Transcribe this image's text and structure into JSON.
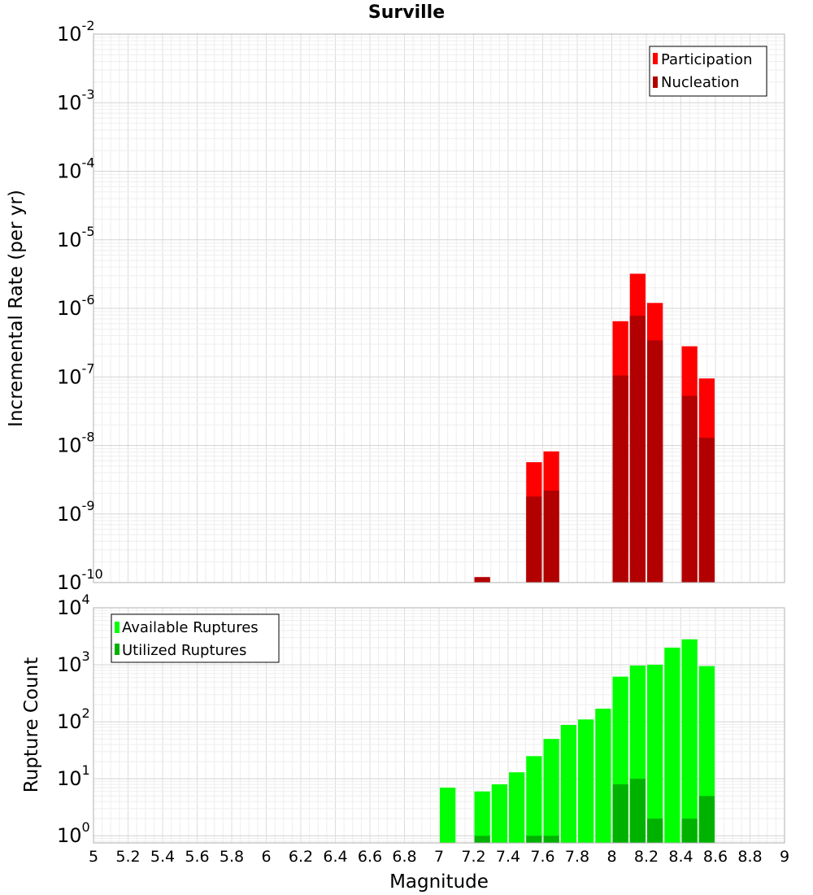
{
  "chart_data": [
    {
      "type": "bar",
      "title": "Surville",
      "xlabel": "",
      "ylabel": "Incremental Rate (per yr)",
      "yscale": "log",
      "xlim": [
        5,
        9
      ],
      "ylim": [
        1e-10,
        0.01
      ],
      "bar_width": 0.1,
      "grid": true,
      "legend_position": "top-right",
      "ytick_labels": [
        {
          "base": "10",
          "exp": "-2"
        },
        {
          "base": "10",
          "exp": "-3"
        },
        {
          "base": "10",
          "exp": "-4"
        },
        {
          "base": "10",
          "exp": "-5"
        },
        {
          "base": "10",
          "exp": "-6"
        },
        {
          "base": "10",
          "exp": "-7"
        },
        {
          "base": "10",
          "exp": "-8"
        },
        {
          "base": "10",
          "exp": "-9"
        },
        {
          "base": "10",
          "exp": "-10"
        }
      ],
      "x": [
        7.25,
        7.55,
        7.65,
        8.05,
        8.15,
        8.25,
        8.45,
        8.55
      ],
      "series": [
        {
          "name": "Participation",
          "color": "#ff0000",
          "values": [
            1.2e-10,
            5.7e-09,
            8.2e-09,
            6.5e-07,
            3.2e-06,
            1.2e-06,
            2.8e-07,
            9.5e-08
          ]
        },
        {
          "name": "Nucleation",
          "color": "#b20000",
          "values": [
            1.2e-10,
            1.8e-09,
            2.2e-09,
            1.05e-07,
            7.8e-07,
            3.4e-07,
            5.3e-08,
            1.3e-08
          ]
        }
      ]
    },
    {
      "type": "bar",
      "title": "",
      "xlabel": "Magnitude",
      "ylabel": "Rupture Count",
      "yscale": "log",
      "xlim": [
        5,
        9
      ],
      "ylim": [
        0.75,
        10000
      ],
      "bar_width": 0.1,
      "grid": true,
      "legend_position": "top-left",
      "xtick_labels": [
        "5",
        "5.2",
        "5.4",
        "5.6",
        "5.8",
        "6",
        "6.2",
        "6.4",
        "6.6",
        "6.8",
        "7",
        "7.2",
        "7.4",
        "7.6",
        "7.8",
        "8",
        "8.2",
        "8.4",
        "8.6",
        "8.8",
        "9"
      ],
      "ytick_labels": [
        {
          "base": "10",
          "exp": "4"
        },
        {
          "base": "10",
          "exp": "3"
        },
        {
          "base": "10",
          "exp": "2"
        },
        {
          "base": "10",
          "exp": "1"
        },
        {
          "base": "10",
          "exp": "0"
        }
      ],
      "x": [
        7.05,
        7.25,
        7.35,
        7.45,
        7.55,
        7.65,
        7.75,
        7.85,
        7.95,
        8.05,
        8.15,
        8.25,
        8.35,
        8.45,
        8.55
      ],
      "series": [
        {
          "name": "Available Ruptures",
          "color": "#00ff00",
          "values": [
            7,
            6,
            8,
            13,
            25,
            50,
            88,
            110,
            170,
            620,
            970,
            1000,
            2000,
            2800,
            950
          ]
        },
        {
          "name": "Utilized Ruptures",
          "color": "#00b200",
          "values": [
            null,
            1,
            null,
            null,
            1,
            1,
            null,
            null,
            null,
            8,
            10,
            2,
            null,
            2,
            5
          ]
        }
      ]
    }
  ]
}
